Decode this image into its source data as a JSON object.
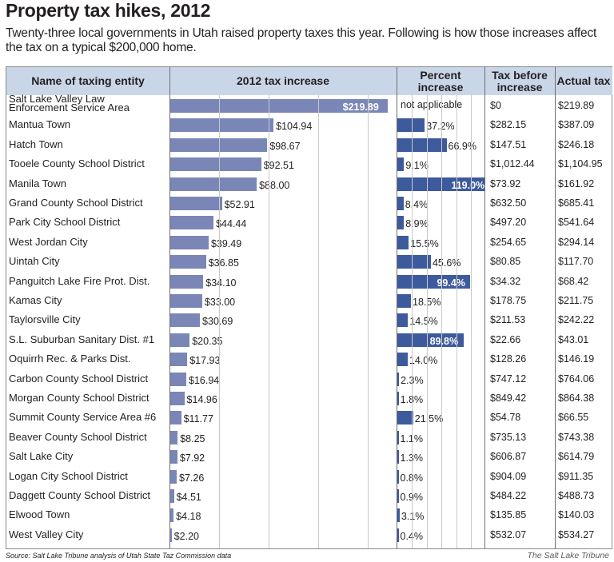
{
  "title": "Property tax hikes, 2012",
  "subtitle": "Twenty-three local governments in Utah raised property taxes this year. Following is how those increases affect the tax on a typical $200,000 home.",
  "headers": {
    "name": "Name of taxing entity",
    "increase": "2012 tax increase",
    "percent": "Percent increase",
    "before": "Tax before increase",
    "actual": "Actual tax"
  },
  "source": "Source: Salt Lake Tribune analysis of Utah State Taz Commission data",
  "credit": "The Salt Lake Tribune",
  "colors": {
    "header_bg": "#c9d6e8",
    "increase_bar": "#7a86b6",
    "percent_bar": "#3d5a9c"
  },
  "chart_data": {
    "type": "table",
    "title": "Property tax hikes, 2012",
    "columns": [
      "Name of taxing entity",
      "2012 tax increase",
      "Percent increase",
      "Tax before increase",
      "Actual tax"
    ],
    "increase_axis": {
      "range": [
        0,
        220
      ],
      "grid_step": 50
    },
    "percent_axis": {
      "range": [
        0,
        120
      ],
      "grid_step": 20
    },
    "rows": [
      {
        "name": "Salt Lake Valley Law Enforcement Service Area",
        "increase": 219.89,
        "increase_label": "$219.89",
        "percent": null,
        "percent_label": "not applicable",
        "before": "$0",
        "actual": "$219.89"
      },
      {
        "name": "Mantua Town",
        "increase": 104.94,
        "increase_label": "$104.94",
        "percent": 37.2,
        "percent_label": "37.2%",
        "before": "$282.15",
        "actual": "$387.09"
      },
      {
        "name": "Hatch Town",
        "increase": 98.67,
        "increase_label": "$98.67",
        "percent": 66.9,
        "percent_label": "66.9%",
        "before": "$147.51",
        "actual": "$246.18"
      },
      {
        "name": "Tooele County School District",
        "increase": 92.51,
        "increase_label": "$92.51",
        "percent": 9.1,
        "percent_label": "9.1%",
        "before": "$1,012.44",
        "actual": "$1,104.95"
      },
      {
        "name": "Manila Town",
        "increase": 88.0,
        "increase_label": "$88.00",
        "percent": 119.0,
        "percent_label": "119.0%",
        "before": "$73.92",
        "actual": "$161.92"
      },
      {
        "name": "Grand County School District",
        "increase": 52.91,
        "increase_label": "$52.91",
        "percent": 8.4,
        "percent_label": "8.4%",
        "before": "$632.50",
        "actual": "$685.41"
      },
      {
        "name": "Park City School District",
        "increase": 44.44,
        "increase_label": "$44.44",
        "percent": 8.9,
        "percent_label": "8.9%",
        "before": "$497.20",
        "actual": "$541.64"
      },
      {
        "name": "West Jordan City",
        "increase": 39.49,
        "increase_label": "$39.49",
        "percent": 15.5,
        "percent_label": "15.5%",
        "before": "$254.65",
        "actual": "$294.14"
      },
      {
        "name": "Uintah City",
        "increase": 36.85,
        "increase_label": "$36.85",
        "percent": 45.6,
        "percent_label": "45.6%",
        "before": "$80.85",
        "actual": "$117.70"
      },
      {
        "name": "Panguitch Lake Fire Prot. Dist.",
        "increase": 34.1,
        "increase_label": "$34.10",
        "percent": 99.4,
        "percent_label": "99.4%",
        "before": "$34.32",
        "actual": "$68.42"
      },
      {
        "name": "Kamas City",
        "increase": 33.0,
        "increase_label": "$33.00",
        "percent": 18.5,
        "percent_label": "18.5%",
        "before": "$178.75",
        "actual": "$211.75"
      },
      {
        "name": "Taylorsville City",
        "increase": 30.69,
        "increase_label": "$30.69",
        "percent": 14.5,
        "percent_label": "14.5%",
        "before": "$211.53",
        "actual": "$242.22"
      },
      {
        "name": "S.L. Suburban Sanitary Dist. #1",
        "increase": 20.35,
        "increase_label": "$20.35",
        "percent": 89.8,
        "percent_label": "89.8%",
        "before": "$22.66",
        "actual": "$43.01"
      },
      {
        "name": "Oquirrh Rec. & Parks Dist.",
        "increase": 17.93,
        "increase_label": "$17.93",
        "percent": 14.0,
        "percent_label": "14.0%",
        "before": "$128.26",
        "actual": "$146.19"
      },
      {
        "name": "Carbon County School District",
        "increase": 16.94,
        "increase_label": "$16.94",
        "percent": 2.3,
        "percent_label": "2.3%",
        "before": "$747.12",
        "actual": "$764.06"
      },
      {
        "name": "Morgan County School District",
        "increase": 14.96,
        "increase_label": "$14.96",
        "percent": 1.8,
        "percent_label": "1.8%",
        "before": "$849.42",
        "actual": "$864.38"
      },
      {
        "name": "Summit County Service Area #6",
        "increase": 11.77,
        "increase_label": "$11.77",
        "percent": 21.5,
        "percent_label": "21.5%",
        "before": "$54.78",
        "actual": "$66.55"
      },
      {
        "name": "Beaver County School District",
        "increase": 8.25,
        "increase_label": "$8.25",
        "percent": 1.1,
        "percent_label": "1.1%",
        "before": "$735.13",
        "actual": "$743.38"
      },
      {
        "name": "Salt Lake City",
        "increase": 7.92,
        "increase_label": "$7.92",
        "percent": 1.3,
        "percent_label": "1.3%",
        "before": "$606.87",
        "actual": "$614.79"
      },
      {
        "name": "Logan City School District",
        "increase": 7.26,
        "increase_label": "$7.26",
        "percent": 0.8,
        "percent_label": "0.8%",
        "before": "$904.09",
        "actual": "$911.35"
      },
      {
        "name": "Daggett County School District",
        "increase": 4.51,
        "increase_label": "$4.51",
        "percent": 0.9,
        "percent_label": "0.9%",
        "before": "$484.22",
        "actual": "$488.73"
      },
      {
        "name": "Elwood Town",
        "increase": 4.18,
        "increase_label": "$4.18",
        "percent": 3.1,
        "percent_label": "3.1%",
        "before": "$135.85",
        "actual": "$140.03"
      },
      {
        "name": "West Valley City",
        "increase": 2.2,
        "increase_label": "$2.20",
        "percent": 0.4,
        "percent_label": "0.4%",
        "before": "$532.07",
        "actual": "$534.27"
      }
    ]
  }
}
